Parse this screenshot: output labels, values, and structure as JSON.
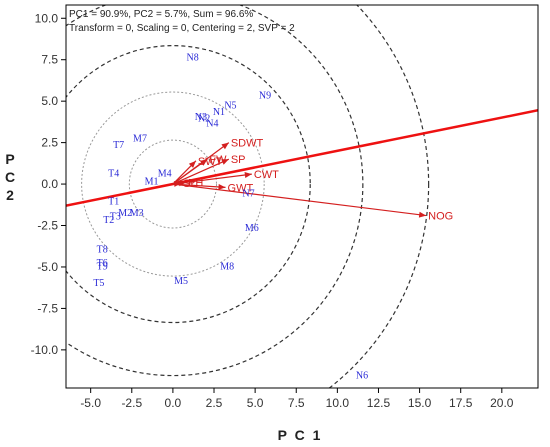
{
  "chart_data": {
    "type": "scatter",
    "subtype": "GGE biplot",
    "caption_line1": "PC1 = 90.9%, PC2 = 5.7%, Sum = 96.6%",
    "caption_line2": "Transform = 0, Scaling = 0, Centering = 2, SVP = 2",
    "xlabel": "P C 1",
    "ylabel": "P\nC\n2",
    "xlim": [
      -6.5,
      22.2
    ],
    "ylim": [
      -12.3,
      10.8
    ],
    "x_ticks": [
      -5.0,
      -2.5,
      0.0,
      2.5,
      5.0,
      7.5,
      10.0,
      12.5,
      15.0,
      17.5,
      20.0
    ],
    "x_tick_labels": [
      "-5.0",
      "-2.5",
      "0.0",
      "2.5",
      "5.0",
      "7.5",
      "10.0",
      "12.5",
      "15.0",
      "17.5",
      "20.0"
    ],
    "y_ticks": [
      10.0,
      7.5,
      5.0,
      2.5,
      0.0,
      -2.5,
      -5.0,
      -7.5,
      -10.0
    ],
    "y_tick_labels": [
      "10.0",
      "7.5",
      "5.0",
      "2.5",
      "0.0",
      "-2.5",
      "-5.0",
      "-7.5",
      "-10.0"
    ],
    "grid": false,
    "colors": {
      "genotype": "#2b2bd6",
      "trait": "#d41f1f",
      "axis_line": "#ee1111",
      "circle_inner": "#999999",
      "circle_outer": "#333333"
    },
    "circles": [
      {
        "radius": 2.65,
        "style": "dotted-gray"
      },
      {
        "radius": 5.55,
        "style": "dotted-gray"
      },
      {
        "radius": 8.35,
        "style": "dashed-dark"
      },
      {
        "radius": 11.55,
        "style": "dashed-dark"
      },
      {
        "radius": 15.55,
        "style": "dashed-dark"
      }
    ],
    "average_environment_axis": {
      "from": [
        -6.5,
        -1.3
      ],
      "to": [
        22.2,
        4.45
      ]
    },
    "genotypes": [
      {
        "name": "N8",
        "x": 1.2,
        "y": 7.6
      },
      {
        "name": "N9",
        "x": 5.6,
        "y": 5.3
      },
      {
        "name": "N5",
        "x": 3.5,
        "y": 4.7
      },
      {
        "name": "N1",
        "x": 2.8,
        "y": 4.3
      },
      {
        "name": "N3",
        "x": 1.7,
        "y": 4.0
      },
      {
        "name": "N2",
        "x": 1.9,
        "y": 3.9
      },
      {
        "name": "N4",
        "x": 2.4,
        "y": 3.6
      },
      {
        "name": "M7",
        "x": -2.0,
        "y": 2.7
      },
      {
        "name": "T7",
        "x": -3.3,
        "y": 2.3
      },
      {
        "name": "T4",
        "x": -3.6,
        "y": 0.6
      },
      {
        "name": "M4",
        "x": -0.5,
        "y": 0.6
      },
      {
        "name": "M1",
        "x": -1.3,
        "y": 0.1
      },
      {
        "name": "T1",
        "x": -3.6,
        "y": -1.1
      },
      {
        "name": "M2",
        "x": -2.9,
        "y": -1.8
      },
      {
        "name": "M3",
        "x": -2.2,
        "y": -1.8
      },
      {
        "name": "T2",
        "x": -3.9,
        "y": -2.2
      },
      {
        "name": "T3",
        "x": -3.5,
        "y": -2.0
      },
      {
        "name": "T8",
        "x": -4.3,
        "y": -4.0
      },
      {
        "name": "T9",
        "x": -4.3,
        "y": -5.0
      },
      {
        "name": "T6",
        "x": -4.3,
        "y": -4.8
      },
      {
        "name": "T5",
        "x": -4.5,
        "y": -6.0
      },
      {
        "name": "M5",
        "x": 0.5,
        "y": -5.9
      },
      {
        "name": "M6",
        "x": 4.8,
        "y": -2.7
      },
      {
        "name": "N7",
        "x": 4.6,
        "y": -0.6
      },
      {
        "name": "M8",
        "x": 3.3,
        "y": -5.0
      },
      {
        "name": "N6",
        "x": 11.5,
        "y": -11.6
      }
    ],
    "traits": [
      {
        "name": "SDWT",
        "x": 3.4,
        "y": 2.5
      },
      {
        "name": "SWT",
        "x": 1.4,
        "y": 1.4
      },
      {
        "name": "FW",
        "x": 2.1,
        "y": 1.5
      },
      {
        "name": "SP",
        "x": 3.4,
        "y": 1.5
      },
      {
        "name": "CWT",
        "x": 4.8,
        "y": 0.6
      },
      {
        "name": "GWT",
        "x": 3.2,
        "y": -0.2
      },
      {
        "name": "NOG",
        "x": 15.4,
        "y": -1.9
      },
      {
        "name": "SL",
        "x": 0.5,
        "y": 0.05
      },
      {
        "name": "PH",
        "x": 0.8,
        "y": 0.1
      }
    ]
  }
}
